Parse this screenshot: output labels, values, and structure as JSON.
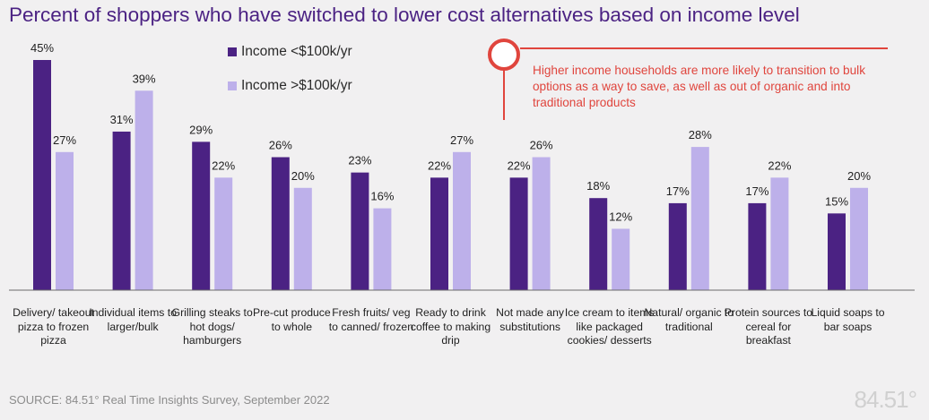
{
  "chart_data": {
    "type": "bar",
    "title": "Percent of shoppers who have switched to lower cost alternatives based on income level",
    "categories": [
      "Delivery/ takeout pizza to frozen pizza",
      "Individual items to larger/bulk",
      "Grilling steaks to hot dogs/ hamburgers",
      "Pre-cut produce to whole",
      "Fresh fruits/ veg to canned/ frozen",
      "Ready to drink coffee to making drip",
      "Not made any substitutions",
      "Ice cream to items like packaged cookies/ desserts",
      "Natural/ organic to traditional",
      "Protein sources to cereal for breakfast",
      "Liquid soaps to bar soaps"
    ],
    "series": [
      {
        "name": "Income <$100k/yr",
        "color": "#4b2283",
        "values": [
          45,
          31,
          29,
          26,
          23,
          22,
          22,
          18,
          17,
          17,
          15
        ]
      },
      {
        "name": "Income >$100k/yr",
        "color": "#bdb0ea",
        "values": [
          27,
          39,
          22,
          20,
          16,
          27,
          26,
          12,
          28,
          22,
          20
        ]
      }
    ],
    "value_suffix": "%",
    "ylim": [
      0,
      45
    ],
    "xlabel": "",
    "ylabel": "",
    "grid": false,
    "legend": "top-left",
    "annotation": "Higher income households are more likely to transition to bulk options as a way to save, as well as out of organic and into traditional products",
    "source": "SOURCE:  84.51° Real Time Insights Survey, September 2022",
    "logo": "84.51°"
  },
  "colors": {
    "title": "#4b2283",
    "axis": "#6a6a6a",
    "callout": "#e0453d",
    "background": "#f1f0f1"
  }
}
